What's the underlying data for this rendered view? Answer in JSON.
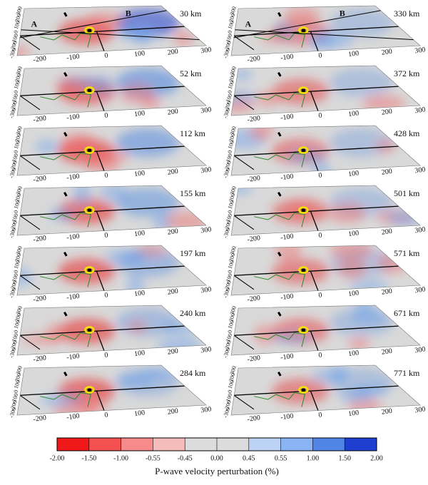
{
  "panels": [
    {
      "depth": "30 km",
      "profile": [
        "A",
        "B"
      ]
    },
    {
      "depth": "52 km"
    },
    {
      "depth": "112 km"
    },
    {
      "depth": "155 km"
    },
    {
      "depth": "197 km"
    },
    {
      "depth": "240 km"
    },
    {
      "depth": "284 km"
    },
    {
      "depth": "330 km",
      "profile": [
        "A",
        "B"
      ]
    },
    {
      "depth": "372 km"
    },
    {
      "depth": "428 km"
    },
    {
      "depth": "501 km"
    },
    {
      "depth": "571 km"
    },
    {
      "depth": "671 km"
    },
    {
      "depth": "771 km"
    }
  ],
  "axis": {
    "x_ticks": [
      "-200",
      "-100",
      "0",
      "100",
      "200",
      "300"
    ],
    "y_ticks": [
      "-300",
      "-200",
      "-100",
      "0",
      "100",
      "200",
      "300"
    ]
  },
  "colorbar": {
    "ticks": [
      "-2.00",
      "-1.50",
      "-1.00",
      "-0.55",
      "-0.45",
      "0.00",
      "0.45",
      "0.55",
      "1.00",
      "1.50",
      "2.00"
    ],
    "label": "P-wave velocity perturbation (%)"
  }
}
